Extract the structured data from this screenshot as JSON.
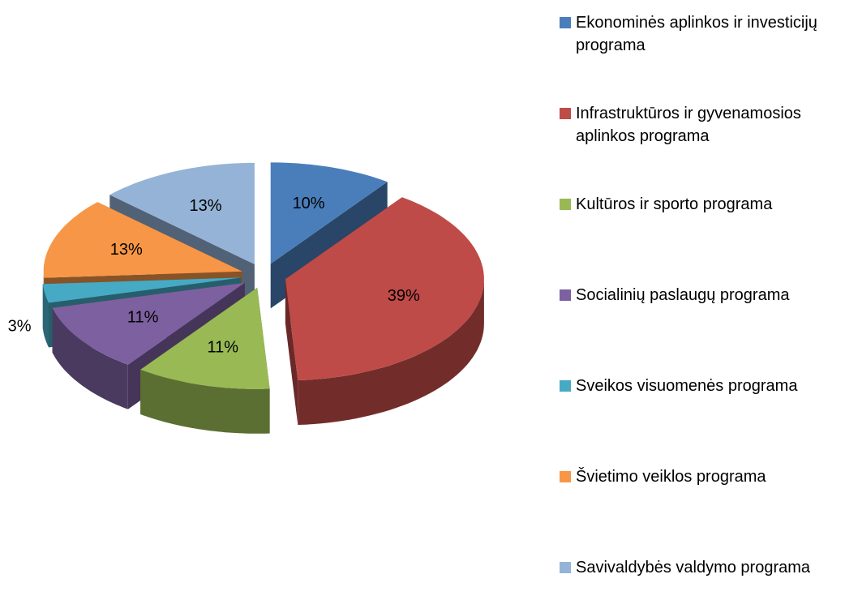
{
  "chart_data": {
    "type": "pie3d",
    "categories": [
      "Ekonominės aplinkos ir investicijų programa",
      "Infrastruktūros ir gyvenamosios aplinkos programa",
      "Kultūros ir sporto programa",
      "Socialinių paslaugų programa",
      "Sveikos visuomenės programa",
      "Švietimo veiklos programa",
      "Savivaldybės valdymo programa"
    ],
    "values": [
      10,
      39,
      11,
      11,
      3,
      13,
      13
    ],
    "value_labels": [
      "10%",
      "39%",
      "11%",
      "11%",
      "3%",
      "13%",
      "13%"
    ],
    "colors": [
      "#4a7ebb",
      "#be4b48",
      "#98b954",
      "#7d60a0",
      "#46aac5",
      "#f79646",
      "#95b3d7"
    ],
    "legend": "right"
  }
}
